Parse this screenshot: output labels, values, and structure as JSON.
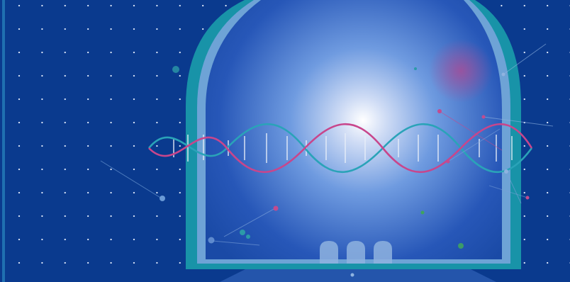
{
  "scene": {
    "colors": {
      "background": "#0a3a8e",
      "arch_outer": "#1893a8",
      "arch_inner": "#6ea3d6",
      "glow_center": "#ffffff",
      "glow_mid": "#6f9be0",
      "glow_edge": "#1a4aa6",
      "dna_pink": "#c8468c",
      "dna_teal": "#2aa3b8",
      "dna_rungs": "#e8eef8",
      "dots": "#e8f0ff",
      "particles_teal": "#2c9aa8",
      "particles_pink": "#c24b8f",
      "particles_green": "#3fa35f",
      "pods": "#8fb3e0"
    },
    "icons": {
      "arch": "arch-window-shape",
      "helix": "dna-helix-shape",
      "pods": "lab-pod-shape",
      "particles": "floating-particle-shape"
    }
  }
}
